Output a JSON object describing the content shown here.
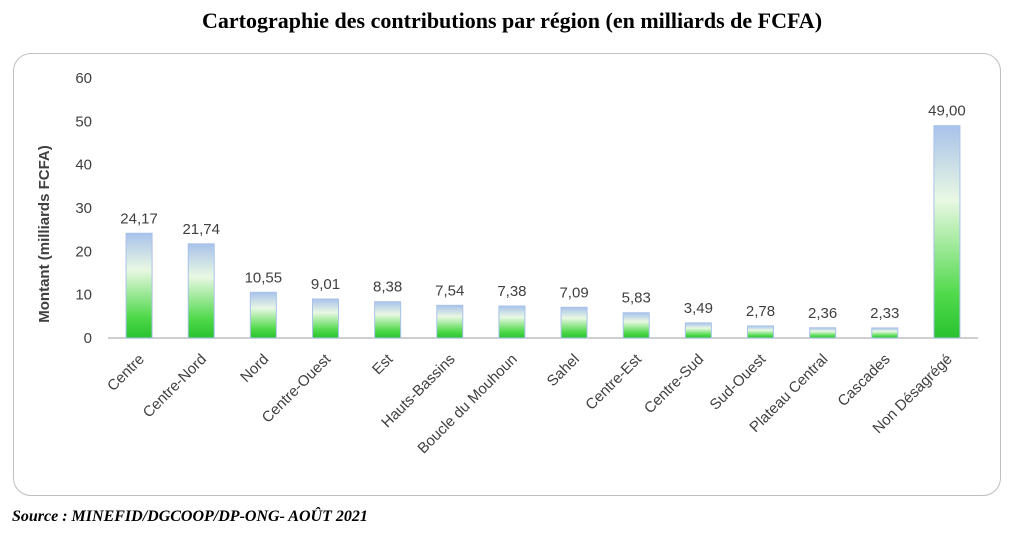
{
  "chart_data": {
    "type": "bar",
    "title": "Cartographie des contributions par région (en milliards de FCFA)",
    "ylabel": "Montant (milliards FCFA)",
    "xlabel": "",
    "ylim": [
      0,
      60
    ],
    "yticks": [
      "0",
      "10",
      "20",
      "30",
      "40",
      "50",
      "60"
    ],
    "categories": [
      "Centre",
      "Centre-Nord",
      "Nord",
      "Centre-Ouest",
      "Est",
      "Hauts-Bassins",
      "Boucle du Mouhoun",
      "Sahel",
      "Centre-Est",
      "Centre-Sud",
      "Sud-Ouest",
      "Plateau Central",
      "Cascades",
      "Non Désagrégé"
    ],
    "values": [
      24.17,
      21.74,
      10.55,
      9.01,
      8.38,
      7.54,
      7.38,
      7.09,
      5.83,
      3.49,
      2.78,
      2.36,
      2.33,
      49.0
    ],
    "value_labels": [
      "24,17",
      "21,74",
      "10,55",
      "9,01",
      "8,38",
      "7,54",
      "7,38",
      "7,09",
      "5,83",
      "3,49",
      "2,78",
      "2,36",
      "2,33",
      "49,00"
    ],
    "grid": false,
    "legend": "none",
    "colors": {
      "bar_top": "#a9c2ea",
      "bar_mid": "#e9f8e3",
      "bar_bottom": "#29c22f",
      "axis": "#bfbfbf",
      "text": "#404040"
    }
  },
  "source": "Source : MINEFID/DGCOOP/DP-ONG- AOÛT 2021"
}
